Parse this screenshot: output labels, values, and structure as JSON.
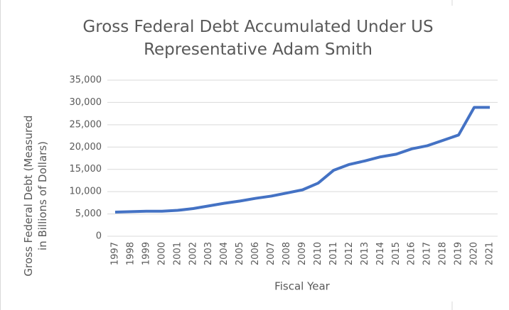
{
  "chart_data": {
    "type": "line",
    "title": "Gross Federal Debt Accumulated Under US Representative Adam Smith",
    "xlabel": "Fiscal Year",
    "ylabel": "Gross Federal Debt (Measured in Billions of Dollars)",
    "categories": [
      "1997",
      "1998",
      "1999",
      "2000",
      "2001",
      "2002",
      "2003",
      "2004",
      "2005",
      "2006",
      "2007",
      "2008",
      "2009",
      "2010",
      "2011",
      "2012",
      "2013",
      "2014",
      "2015",
      "2016",
      "2017",
      "2018",
      "2019",
      "2020",
      "2021"
    ],
    "series": [
      {
        "name": "Gross Federal Debt",
        "color": "#4472c4",
        "values": [
          5400,
          5500,
          5600,
          5600,
          5800,
          6200,
          6800,
          7400,
          7900,
          8500,
          9000,
          9700,
          10400,
          11900,
          14800,
          16100,
          16900,
          17800,
          18400,
          19600,
          20300,
          21500,
          22700,
          28900,
          28900
        ]
      }
    ],
    "ylim": [
      0,
      35000
    ],
    "yticks": [
      0,
      {
        "value": 5000,
        "label": "5,000"
      },
      {
        "value": 10000,
        "label": "10,000"
      },
      {
        "value": 15000,
        "label": "15,000"
      },
      {
        "value": 20000,
        "label": "20,000"
      },
      {
        "value": 25000,
        "label": "25,000"
      },
      {
        "value": 30000,
        "label": "30,000"
      },
      {
        "value": 35000,
        "label": "35,000"
      }
    ],
    "grid": true,
    "legend": false
  }
}
